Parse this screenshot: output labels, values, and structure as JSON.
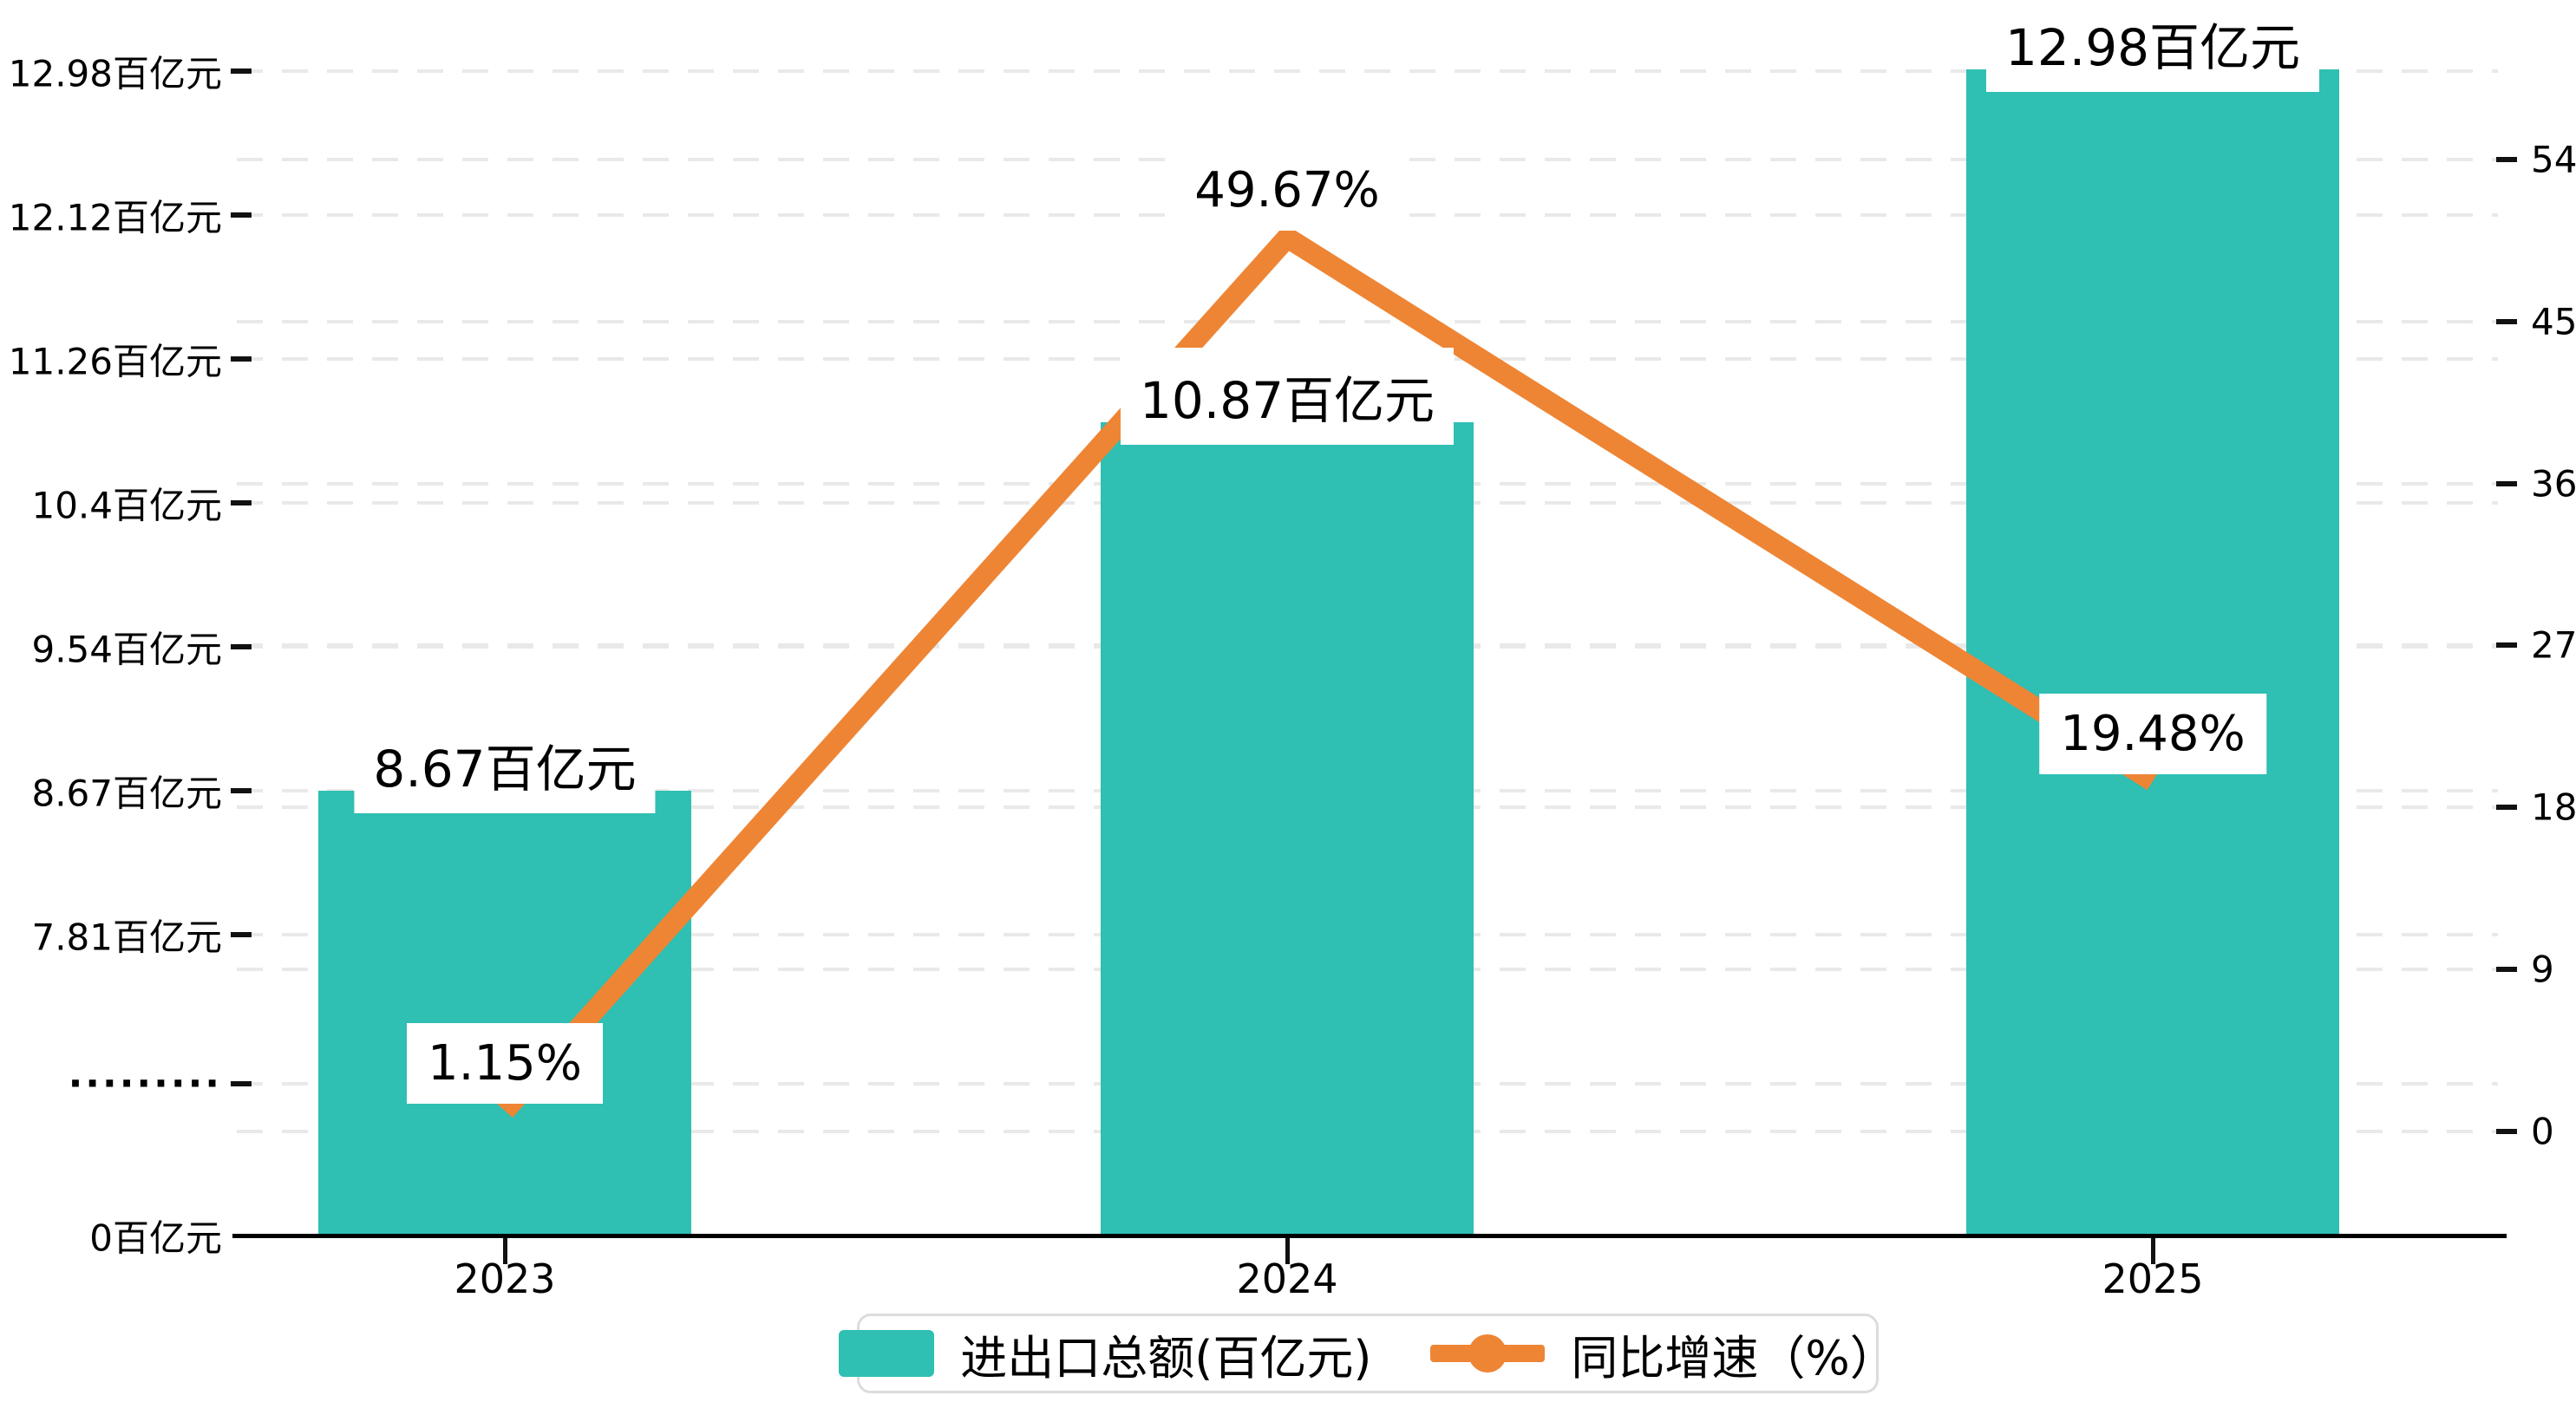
{
  "chart_data": {
    "type": "bar+line",
    "categories": [
      "2023",
      "2024",
      "2025"
    ],
    "series": [
      {
        "name": "进出口总额(百亿元)",
        "type": "bar",
        "values": [
          8.67,
          10.87,
          12.98
        ],
        "value_labels": [
          "8.67百亿元",
          "10.87百亿元",
          "12.98百亿元"
        ],
        "color": "#2FBFB3"
      },
      {
        "name": "同比增速（%）",
        "type": "line",
        "values": [
          1.15,
          49.67,
          19.48
        ],
        "value_labels": [
          "1.15%",
          "49.67%",
          "19.48%"
        ],
        "color": "#EE8535"
      }
    ],
    "left_axis": {
      "tick_labels": [
        "12.98百亿元",
        "12.12百亿元",
        "11.26百亿元",
        "10.4百亿元",
        "9.54百亿元",
        "8.67百亿元",
        "7.81百亿元"
      ],
      "break_label": "·········",
      "zero_label": "0百亿元",
      "unit": "百亿元"
    },
    "right_axis": {
      "tick_labels": [
        "54",
        "45",
        "36",
        "27",
        "18",
        "9",
        "0"
      ],
      "range": [
        0,
        54
      ]
    },
    "legend_position": "bottom",
    "grid": true,
    "title": ""
  },
  "colors": {
    "bar": "#2FBFB3",
    "line": "#EE8535",
    "axis": "#000000",
    "gridline": "#e9e9e9",
    "legend_border": "#dcdcdc",
    "background": "#ffffff"
  }
}
